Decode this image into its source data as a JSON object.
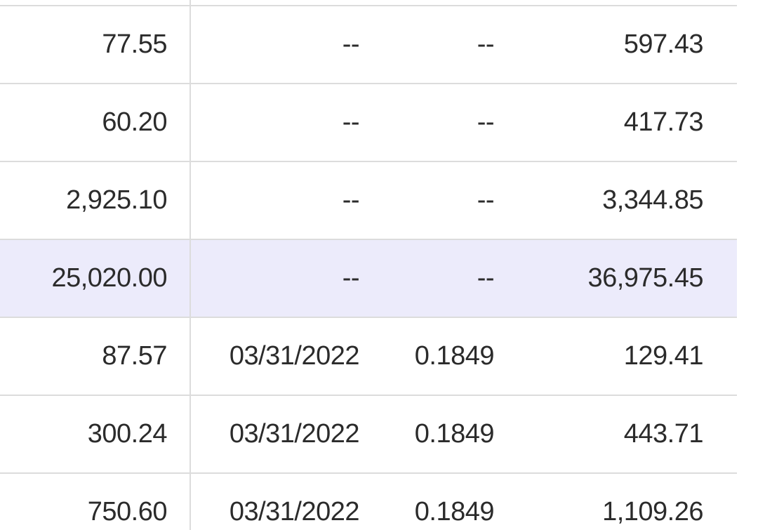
{
  "table": {
    "rows": [
      {
        "c1": "",
        "c2": "",
        "c3": "",
        "c4": "",
        "highlighted": false
      },
      {
        "c1": "77.55",
        "c2": "--",
        "c3": "--",
        "c4": "597.43",
        "highlighted": false
      },
      {
        "c1": "60.20",
        "c2": "--",
        "c3": "--",
        "c4": "417.73",
        "highlighted": false
      },
      {
        "c1": "2,925.10",
        "c2": "--",
        "c3": "--",
        "c4": "3,344.85",
        "highlighted": false
      },
      {
        "c1": "25,020.00",
        "c2": "--",
        "c3": "--",
        "c4": "36,975.45",
        "highlighted": true
      },
      {
        "c1": "87.57",
        "c2": "03/31/2022",
        "c3": "0.1849",
        "c4": "129.41",
        "highlighted": false
      },
      {
        "c1": "300.24",
        "c2": "03/31/2022",
        "c3": "0.1849",
        "c4": "443.71",
        "highlighted": false
      },
      {
        "c1": "750.60",
        "c2": "03/31/2022",
        "c3": "0.1849",
        "c4": "1,109.26",
        "highlighted": false
      }
    ]
  },
  "colors": {
    "highlight_row": "#ecebfb",
    "grid_line": "#dcdcdc",
    "text": "#2b2b2b"
  }
}
